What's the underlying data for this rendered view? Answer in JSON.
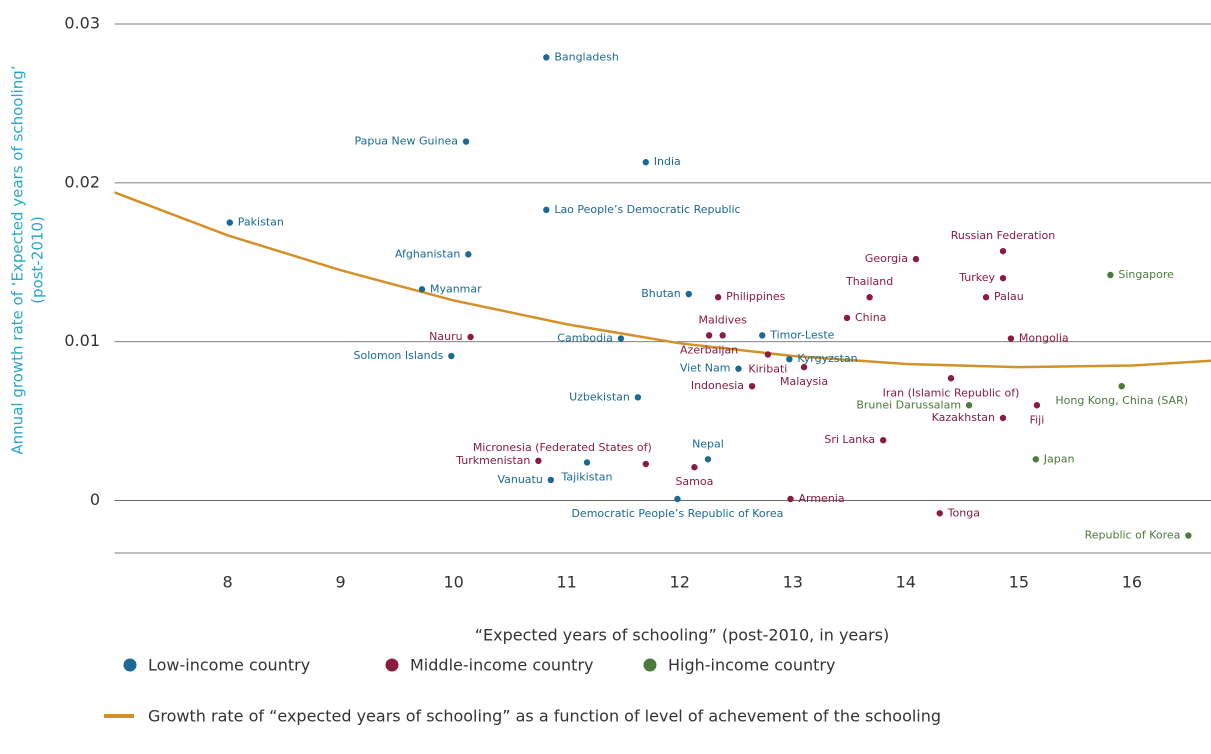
{
  "chart_data": {
    "type": "scatter",
    "xlabel": "“Expected years of schooling” (post-2010, in years)",
    "ylabel": [
      "Annual growth rate of ‘Expected years of schooling’",
      "(post-2010)"
    ],
    "xlim": [
      7,
      16.7
    ],
    "ylim": [
      -0.0033,
      0.03
    ],
    "xticks": [
      8,
      9,
      10,
      11,
      12,
      13,
      14,
      15,
      16
    ],
    "yticks": [
      0,
      0.01,
      0.02,
      0.03
    ],
    "grid": true,
    "series": [
      {
        "name": "Low-income country",
        "color": "#1a6a93",
        "labels": [
          "Bangladesh",
          "Papua New Guinea",
          "India",
          "Lao People’s Democratic Republic",
          "Pakistan",
          "Afghanistan",
          "Myanmar",
          "Bhutan",
          "Cambodia",
          "Timor-Leste",
          "Solomon Islands",
          "Kyrgyzstan",
          "Viet Nam",
          "Uzbekistan",
          "Nepal",
          "Tajikistan",
          "Vanuatu",
          "Democratic People’s Republic of Korea"
        ],
        "x": [
          10.82,
          10.11,
          11.7,
          10.82,
          8.02,
          10.13,
          9.72,
          12.08,
          11.48,
          12.73,
          9.98,
          12.97,
          12.52,
          11.63,
          12.25,
          11.18,
          10.86,
          11.98
        ],
        "values": [
          0.0279,
          0.0226,
          0.0213,
          0.0183,
          0.0175,
          0.0155,
          0.0133,
          0.013,
          0.0102,
          0.0104,
          0.0091,
          0.0089,
          0.0083,
          0.0065,
          0.0026,
          0.0024,
          0.0013,
          0.0001
        ]
      },
      {
        "name": "Middle-income country",
        "color": "#8a1c3e",
        "labels": [
          "Russian Federation",
          "Georgia",
          "Turkey",
          "Thailand",
          "Palau",
          "Philippines",
          "China",
          "Nauru",
          "Maldives",
          "Azerbaijan",
          "Kiribati",
          "Malaysia",
          "Mongolia",
          "Indonesia",
          "Iran (Islamic Republic of)",
          "Kazakhstan",
          "Fiji",
          "Sri Lanka",
          "Micronesia (Federated States of)",
          "Turkmenistan",
          "Samoa",
          "Armenia",
          "Tonga"
        ],
        "x": [
          14.86,
          14.09,
          14.86,
          13.68,
          14.71,
          12.34,
          13.48,
          10.15,
          12.38,
          12.26,
          12.78,
          13.1,
          14.93,
          12.64,
          14.4,
          14.86,
          15.16,
          13.8,
          11.7,
          10.75,
          12.13,
          12.98,
          14.3
        ],
        "values": [
          0.0157,
          0.0152,
          0.014,
          0.0128,
          0.0128,
          0.0128,
          0.0115,
          0.0103,
          0.0104,
          0.0104,
          0.0092,
          0.0084,
          0.0102,
          0.0072,
          0.0077,
          0.0052,
          0.006,
          0.0038,
          0.0023,
          0.0025,
          0.0021,
          0.0001,
          -0.0008
        ]
      },
      {
        "name": "High-income country",
        "color": "#4b7a3c",
        "labels": [
          "Singapore",
          "Hong Kong, China (SAR)",
          "Brunei Darussalam",
          "Japan",
          "Republic of Korea"
        ],
        "x": [
          15.81,
          15.91,
          14.56,
          15.15,
          16.5
        ],
        "values": [
          0.0142,
          0.0072,
          0.006,
          0.0026,
          -0.0022
        ]
      }
    ],
    "fit": {
      "name": "Growth rate of “expected years of schooling” as a function of level of achevement of the schooling",
      "color": "#d4912a",
      "x": [
        7,
        8,
        9,
        10,
        11,
        12,
        13,
        14,
        15,
        16,
        16.7
      ],
      "values": [
        0.0194,
        0.0167,
        0.0145,
        0.0126,
        0.0111,
        0.0099,
        0.0091,
        0.0086,
        0.0084,
        0.0085,
        0.0088
      ]
    }
  }
}
